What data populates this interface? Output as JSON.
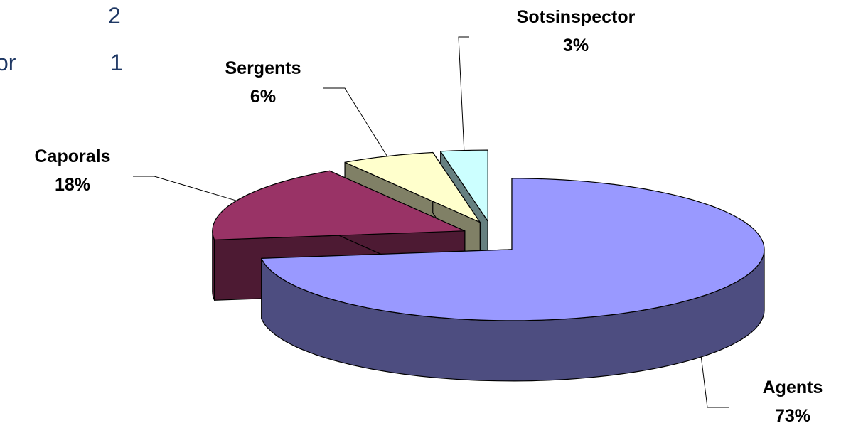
{
  "backdrop_table": {
    "rows": [
      [
        "2"
      ],
      [
        "or",
        "1"
      ]
    ]
  },
  "chart_data": {
    "type": "pie3d",
    "categories": [
      "Agents",
      "Caporals",
      "Sergents",
      "Sotsinspector"
    ],
    "values": [
      73,
      18,
      6,
      3
    ],
    "value_labels": [
      "73%",
      "18%",
      "6%",
      "3%"
    ],
    "colors": [
      "#9999ff",
      "#993366",
      "#ffffcc",
      "#ccffff"
    ],
    "side_colors": [
      "#4d4d80",
      "#4d1a33",
      "#808066",
      "#668080"
    ]
  }
}
